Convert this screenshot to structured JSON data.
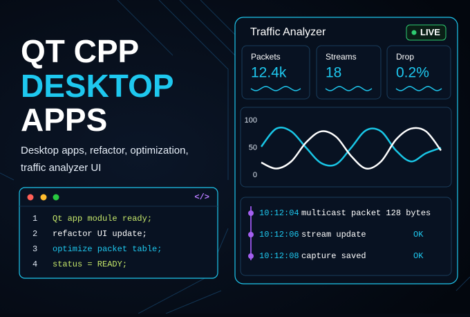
{
  "headline": {
    "lines": [
      "QT CPP",
      "DESKTOP",
      "APPS"
    ],
    "subtitle": [
      "Desktop apps, refactor, optimization,",
      "traffic analyzer UI"
    ]
  },
  "code": {
    "icon": "</>",
    "lines": [
      {
        "number": "1",
        "text": "Qt app module ready;"
      },
      {
        "number": "2",
        "text": "refactor UI update;"
      },
      {
        "number": "3",
        "text": "optimize packet table;"
      },
      {
        "number": "4",
        "text": "status = READY;"
      }
    ]
  },
  "panel": {
    "title": "Traffic Analyzer",
    "badge": "LIVE",
    "stats": [
      {
        "label": "Packets",
        "value": "12.4k"
      },
      {
        "label": "Streams",
        "value": "18"
      },
      {
        "label": "Drop",
        "value": "0.2%"
      }
    ]
  },
  "chart_data": {
    "type": "line",
    "categories": [
      null,
      null,
      null,
      null,
      null,
      null,
      null,
      null,
      null,
      null,
      null,
      null,
      null
    ],
    "series": [
      {
        "color": "#19c6e6",
        "values": [
          52,
          85,
          80,
          50,
          22,
          20,
          50,
          82,
          80,
          45,
          25,
          40,
          50
        ]
      },
      {
        "color": "#ffffff",
        "values": [
          23,
          12,
          25,
          60,
          80,
          70,
          35,
          12,
          25,
          65,
          85,
          80,
          45
        ]
      }
    ],
    "ylim": [
      0,
      100
    ],
    "yticks": [
      0,
      50,
      100
    ],
    "grid": false
  },
  "log": {
    "entries": [
      {
        "time": "10:12:04",
        "message": "multicast packet 128 bytes"
      },
      {
        "time": "10:12:06",
        "message": "stream update",
        "status": "OK"
      },
      {
        "time": "10:12:08",
        "message": "capture saved",
        "status": "OK"
      }
    ]
  }
}
